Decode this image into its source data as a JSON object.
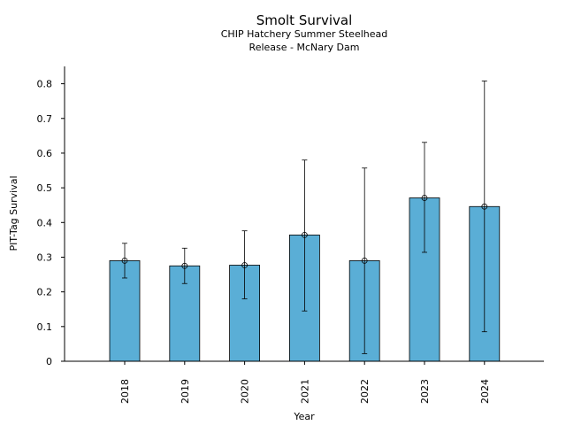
{
  "chart_data": {
    "type": "bar",
    "title": "Smolt Survival",
    "subtitle_lines": [
      "CHIP Hatchery Summer Steelhead",
      "Release - McNary Dam"
    ],
    "xlabel": "Year",
    "ylabel": "PIT-Tag Survival",
    "categories": [
      "2018",
      "2019",
      "2020",
      "2021",
      "2022",
      "2023",
      "2024"
    ],
    "values": [
      0.29,
      0.275,
      0.277,
      0.364,
      0.29,
      0.471,
      0.446
    ],
    "error_low": [
      0.24,
      0.224,
      0.18,
      0.145,
      0.022,
      0.314,
      0.085
    ],
    "error_high": [
      0.34,
      0.326,
      0.376,
      0.58,
      0.557,
      0.631,
      0.808
    ],
    "ylim": [
      0,
      0.85
    ],
    "yticks": [
      0,
      0.1,
      0.2,
      0.3,
      0.4,
      0.5,
      0.6,
      0.7,
      0.8
    ],
    "ytick_labels": [
      "0",
      "0.1",
      "0.2",
      "0.3",
      "0.4",
      "0.5",
      "0.6",
      "0.7",
      "0.8"
    ],
    "bar_color": "#5aaed6",
    "edge_color": "#000000",
    "grid": false,
    "legend": false
  }
}
